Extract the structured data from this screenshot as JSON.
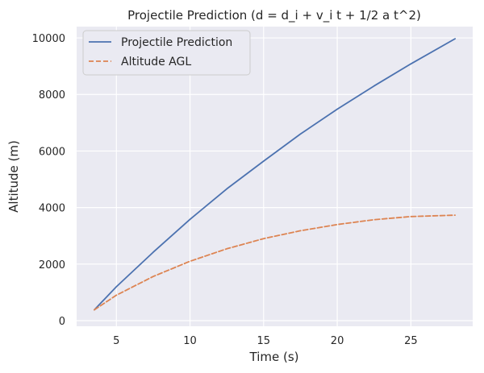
{
  "chart_data": {
    "type": "line",
    "title": "Projectile Prediction (d = d_i + v_i t + 1/2 a t^2)",
    "xlabel": "Time (s)",
    "ylabel": "Altitude (m)",
    "xlim": [
      2.3,
      29.2
    ],
    "ylim": [
      -200,
      10400
    ],
    "xticks": [
      5,
      10,
      15,
      20,
      25
    ],
    "yticks": [
      0,
      2000,
      4000,
      6000,
      8000,
      10000
    ],
    "grid": true,
    "legend_position": "upper-left",
    "series": [
      {
        "name": "Projectile Prediction",
        "color": "#4c72b0",
        "style": "solid",
        "x": [
          3.5,
          5,
          7.5,
          10,
          12.5,
          15,
          17.5,
          20,
          22.5,
          25,
          28
        ],
        "y": [
          380,
          1200,
          2420,
          3580,
          4660,
          5640,
          6600,
          7480,
          8300,
          9080,
          9970
        ]
      },
      {
        "name": "Altitude AGL",
        "color": "#dd8452",
        "style": "dashed",
        "x": [
          3.5,
          5,
          7.5,
          10,
          12.5,
          15,
          17.5,
          20,
          22.5,
          25,
          28
        ],
        "y": [
          380,
          900,
          1560,
          2100,
          2540,
          2900,
          3180,
          3400,
          3570,
          3680,
          3730
        ]
      }
    ]
  }
}
